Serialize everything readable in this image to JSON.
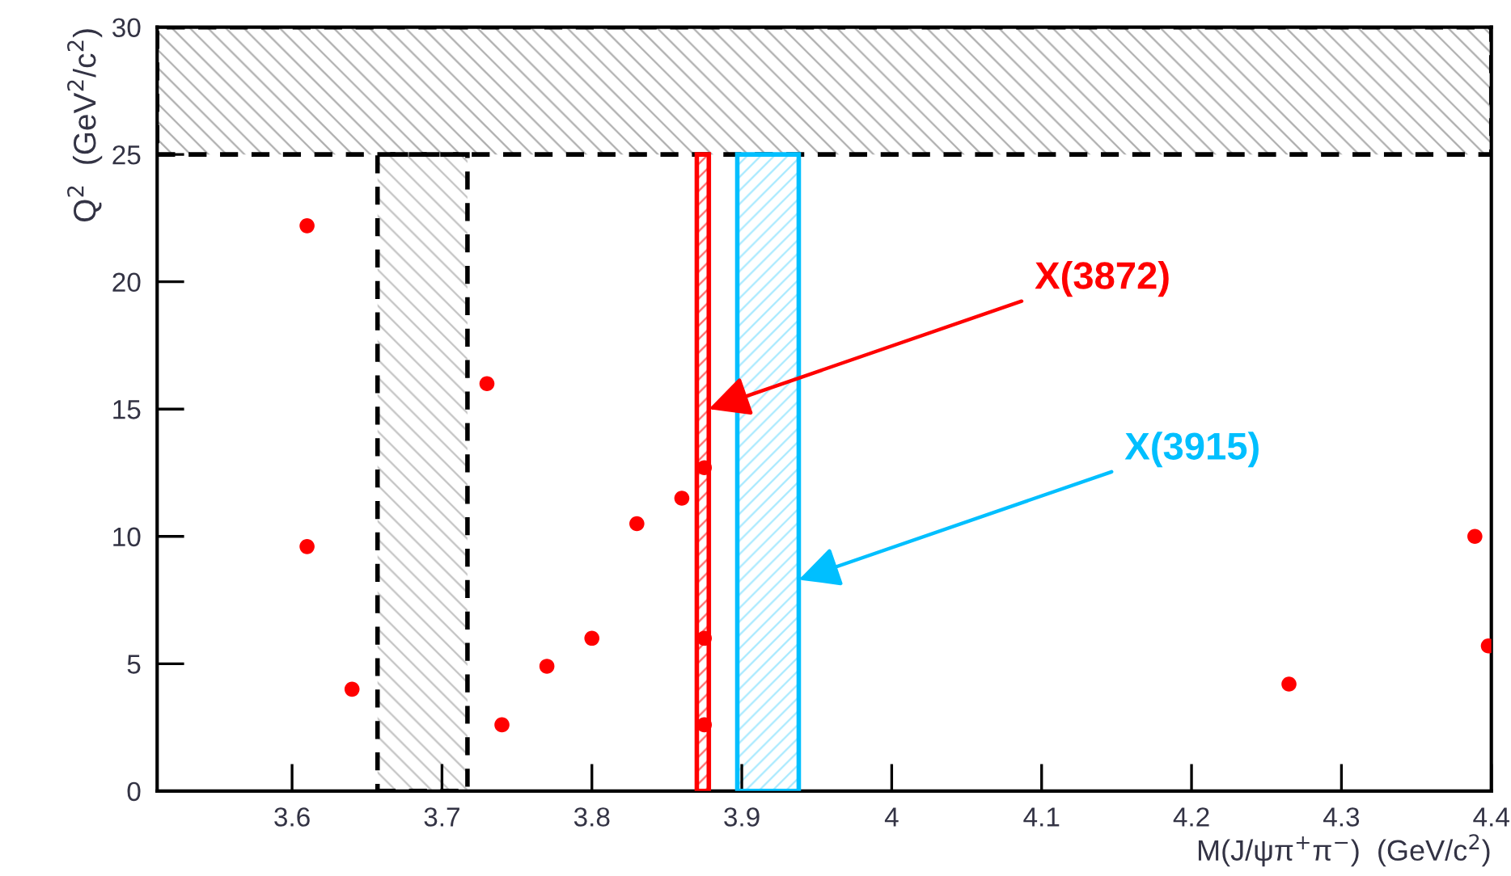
{
  "chart_data": {
    "type": "scatter",
    "xlabel": "M(J/ψπ$^{+}$π$^{−}$)  (GeV/c$^{2}$)",
    "ylabel": "Q$^{2}$  (GeV$^{2}$/c$^{2}$)",
    "x": [
      3.61,
      3.61,
      3.64,
      3.73,
      3.74,
      3.77,
      3.8,
      3.83,
      3.86,
      3.875,
      3.875,
      3.875,
      4.265,
      4.389,
      4.398
    ],
    "series": [
      {
        "color": "#ff0000",
        "values": [
          22.2,
          9.6,
          4.0,
          16.0,
          2.6,
          4.9,
          6.0,
          10.5,
          11.5,
          12.7,
          6.0,
          2.6,
          4.2,
          10.0,
          5.7
        ]
      }
    ],
    "marker": "circle",
    "grid": false,
    "xlim": [
      3.51,
      4.4
    ],
    "ylim": [
      0,
      30
    ],
    "xticks": [
      3.6,
      3.7,
      3.8,
      3.9,
      4,
      4.1,
      4.2,
      4.3,
      4.4
    ],
    "yticks": [
      0,
      5,
      10,
      15,
      20,
      25,
      30
    ],
    "bands": [
      {
        "axis": "y",
        "from": 25,
        "to": 30,
        "color": "#000000"
      },
      {
        "axis": "x",
        "from": 3.657,
        "to": 3.717,
        "color": "#000000"
      },
      {
        "axis": "x",
        "from": 3.87,
        "to": 3.878,
        "color": "#ff0000"
      },
      {
        "axis": "x",
        "from": 3.897,
        "to": 3.938,
        "color": "#00bfff"
      }
    ],
    "annotations": [
      {
        "text": "X(3872)",
        "x": 3.878,
        "y": 15.0
      },
      {
        "text": "X(3915)",
        "x": 3.938,
        "y": 8.3
      }
    ]
  }
}
